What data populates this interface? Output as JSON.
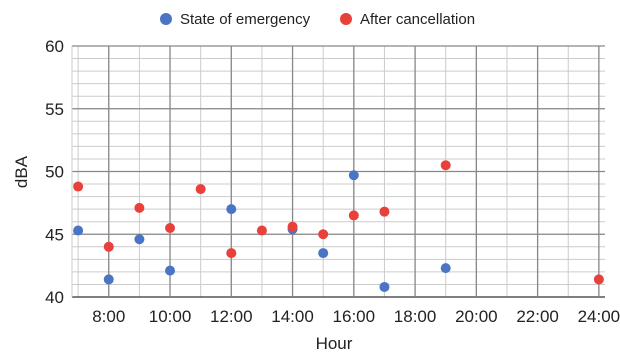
{
  "chart_data": {
    "type": "scatter",
    "xlabel": "Hour",
    "ylabel": "dBA",
    "xlim": [
      6.8,
      24.2
    ],
    "ylim": [
      40,
      60
    ],
    "x_ticks": [
      "8:00",
      "10:00",
      "12:00",
      "14:00",
      "16:00",
      "18:00",
      "20:00",
      "22:00",
      "24:00"
    ],
    "x_tick_values": [
      8,
      10,
      12,
      14,
      16,
      18,
      20,
      22,
      24
    ],
    "y_ticks": [
      "40",
      "45",
      "50",
      "55",
      "60"
    ],
    "y_tick_values": [
      40,
      45,
      50,
      55,
      60
    ],
    "grid": true,
    "legend_position": "top",
    "series": [
      {
        "name": "State of emergency",
        "color": "#4a74c4",
        "x": [
          7,
          8,
          9,
          10,
          12,
          14,
          15,
          16,
          17,
          19
        ],
        "y": [
          45.3,
          41.4,
          44.6,
          42.1,
          47.0,
          45.4,
          43.5,
          49.7,
          40.8,
          42.3
        ]
      },
      {
        "name": "After cancellation",
        "color": "#e8403a",
        "x": [
          7,
          8,
          9,
          10,
          11,
          12,
          13,
          14,
          15,
          16,
          17,
          19,
          24
        ],
        "y": [
          48.8,
          44.0,
          47.1,
          45.5,
          48.6,
          43.5,
          45.3,
          45.6,
          45.0,
          46.5,
          46.8,
          50.5,
          41.4
        ]
      }
    ]
  }
}
